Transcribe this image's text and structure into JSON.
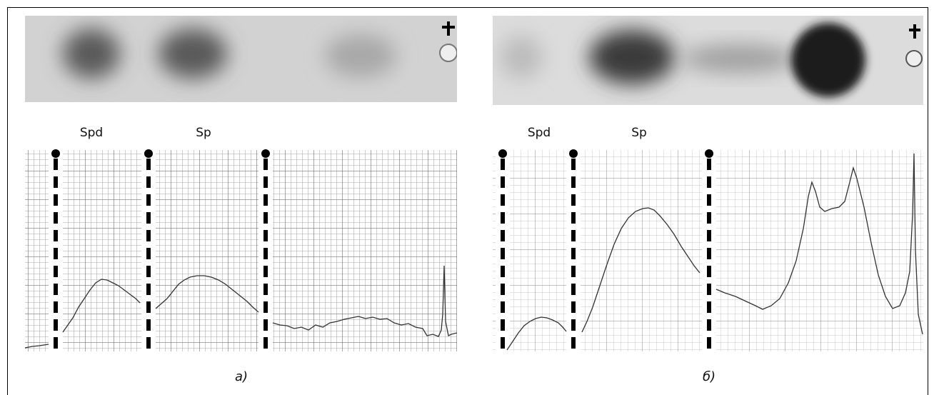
{
  "panels": [
    {
      "bands": [
        "Spd",
        "Sp"
      ],
      "caption": "а)"
    },
    {
      "bands": [
        "Spd",
        "Sp"
      ],
      "caption": "б)"
    }
  ]
}
